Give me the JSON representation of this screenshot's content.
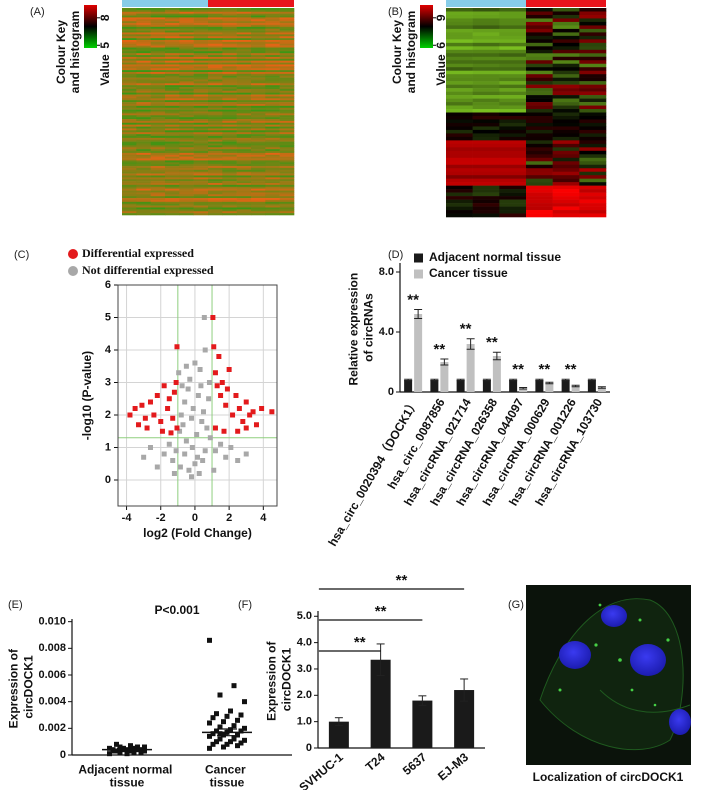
{
  "chart_data": [
    {
      "type": "heatmap",
      "panel_label": "(A)",
      "key_title": [
        "Colour Key",
        "and histogram"
      ],
      "key_label": "Value",
      "key_ticks": [
        5,
        8
      ],
      "key_lim": [
        4.7,
        9.4
      ],
      "group_colors": [
        "#87cde8",
        "#e8141c"
      ]
    },
    {
      "type": "heatmap",
      "panel_label": "(B)",
      "key_title": [
        "Colour Key",
        "and histogram"
      ],
      "key_label": "Value",
      "key_ticks": [
        6,
        9
      ],
      "key_lim": [
        5.7,
        10.4
      ],
      "group_colors": [
        "#87cde8",
        "#e8141c"
      ]
    },
    {
      "type": "scatter",
      "panel_label": "(C)",
      "xlabel": "log2 (Fold Change)",
      "ylabel": "-log10 (P-value)",
      "xlim": [
        -4.5,
        4.8
      ],
      "ylim": [
        -0.8,
        6
      ],
      "xticks": [
        -4,
        -2,
        0,
        2,
        4
      ],
      "yticks": [
        0,
        1,
        2,
        3,
        4,
        5,
        6
      ],
      "grid": true,
      "threshold_lines": {
        "x": [
          -1,
          1
        ],
        "y": [
          1.3
        ],
        "color": "#8fcf7f"
      },
      "series": [
        {
          "name": "Differential expressed",
          "color": "#e31a1c",
          "x": [
            -3.8,
            -3.5,
            -3.1,
            -2.9,
            -2.6,
            -2.4,
            -2.2,
            -2.0,
            -1.8,
            -1.6,
            -1.5,
            -1.3,
            -1.2,
            -1.1,
            -1.05,
            -2.8,
            -3.3,
            -1.9,
            -1.4,
            -1.05,
            1.05,
            1.1,
            1.2,
            1.3,
            1.5,
            1.6,
            1.8,
            2.0,
            2.2,
            2.4,
            2.6,
            2.8,
            3.0,
            3.2,
            3.4,
            3.6,
            3.9,
            4.5,
            1.2,
            1.7,
            2.5,
            1.4,
            1.9,
            3.0
          ],
          "y": [
            2.0,
            2.2,
            2.3,
            1.9,
            2.4,
            2.0,
            2.6,
            1.8,
            2.9,
            2.2,
            2.5,
            1.9,
            2.7,
            3.0,
            1.6,
            1.6,
            1.7,
            1.5,
            1.45,
            4.1,
            5.0,
            4.1,
            3.3,
            2.9,
            2.6,
            3.0,
            2.3,
            3.4,
            2.0,
            2.6,
            2.2,
            1.8,
            2.4,
            2.0,
            2.1,
            1.7,
            2.2,
            2.1,
            1.6,
            1.5,
            1.5,
            3.8,
            2.8,
            1.6
          ]
        },
        {
          "name": "Not differential expressed",
          "color": "#a8a8a8",
          "x": [
            -2.2,
            -1.8,
            -1.5,
            -1.3,
            -1.1,
            -0.9,
            -0.8,
            -0.7,
            -0.6,
            -0.5,
            -0.4,
            -0.3,
            -0.2,
            -0.1,
            0,
            0.1,
            0.2,
            0.3,
            0.4,
            0.5,
            0.6,
            0.7,
            0.8,
            0.9,
            -0.95,
            0.55,
            -0.35,
            0.25,
            1.2,
            1.5,
            1.8,
            2.1,
            2.5,
            3.0,
            -2.6,
            -3.0,
            -0.6,
            0.6,
            -0.2,
            0,
            -0.5,
            0.85,
            -0.75,
            0.35,
            1.1,
            -1.2,
            0.45,
            -0.15,
            0.15,
            -0.85
          ],
          "y": [
            0.4,
            0.8,
            1.1,
            0.6,
            0.9,
            1.5,
            2.0,
            1.7,
            2.4,
            1.2,
            2.8,
            3.1,
            1.9,
            2.2,
            0.5,
            1.4,
            2.6,
            3.4,
            1.8,
            2.1,
            4.0,
            1.6,
            2.5,
            1.3,
            3.3,
            5.0,
            0.3,
            0.2,
            0.9,
            1.1,
            0.7,
            1.0,
            0.6,
            0.8,
            1.0,
            0.7,
            0.8,
            0.9,
            0.1,
            3.6,
            3.5,
            3.0,
            2.9,
            2.9,
            0.3,
            0.2,
            0.6,
            1.0,
            0.7,
            0.4
          ]
        }
      ]
    },
    {
      "type": "bar",
      "panel_label": "(D)",
      "ylabel": "Relative expression of circRNAs",
      "categories": [
        "hsa_circ_0020394（DOCK1）",
        "hsa_circ_0087856",
        "hsa_circRNA_021714",
        "hsa_circRNA_026358",
        "hsa_circRNA_044097",
        "hsa_circRNA_000629",
        "hsa_circRNA_001226",
        "hsa_circRNA_103730"
      ],
      "series": [
        {
          "name": "Adjacent normal tissue",
          "color": "#1a1a1a",
          "values": [
            0.8,
            0.8,
            0.8,
            0.8,
            0.8,
            0.8,
            0.8,
            0.8
          ],
          "errors": [
            0.05,
            0.05,
            0.05,
            0.05,
            0.05,
            0.05,
            0.05,
            0.05
          ]
        },
        {
          "name": "Cancer tissue",
          "color": "#c0c0c0",
          "values": [
            5.2,
            2.0,
            3.2,
            2.4,
            0.25,
            0.6,
            0.4,
            0.3
          ],
          "errors": [
            0.3,
            0.2,
            0.35,
            0.25,
            0.05,
            0.05,
            0.05,
            0.05
          ]
        }
      ],
      "annotations": [
        "**",
        "**",
        "**",
        "**",
        "**",
        "**",
        "**",
        null
      ],
      "ylim": [
        0,
        8.6
      ],
      "yticks": [
        0,
        {
          "value": 4,
          "label": "4.0"
        },
        {
          "value": 8,
          "label": "8.0"
        }
      ]
    },
    {
      "type": "strip",
      "panel_label": "(E)",
      "title": "P<0.001",
      "ylabel": "Expression of circDOCK1",
      "categories": [
        "Adjacent normal tissue",
        "Cancer tissue"
      ],
      "values": [
        [
          0.0001,
          0.0002,
          0.0002,
          0.0003,
          0.0003,
          0.0003,
          0.0004,
          0.0004,
          0.0004,
          0.0004,
          0.0005,
          0.0005,
          0.0005,
          0.0006,
          0.0006,
          0.0007,
          0.0008,
          0.0002,
          0.0001,
          0.0003,
          0.0006,
          0.0004
        ],
        [
          0.0086,
          0.0052,
          0.0045,
          0.004,
          0.0033,
          0.0031,
          0.003,
          0.0029,
          0.0028,
          0.0026,
          0.0025,
          0.0024,
          0.0022,
          0.0021,
          0.002,
          0.0019,
          0.0018,
          0.0018,
          0.0017,
          0.0016,
          0.0015,
          0.0015,
          0.0014,
          0.0013,
          0.0012,
          0.0011,
          0.001,
          0.001,
          0.0009,
          0.0008,
          0.0008,
          0.0007,
          0.0006,
          0.0005,
          0.0012,
          0.0016
        ]
      ],
      "means": [
        0.0004,
        0.0017
      ],
      "errors": [
        0.0001,
        0.00025
      ],
      "color": "#111111",
      "ylim": [
        0,
        0.0102
      ],
      "yticks": [
        0,
        0.002,
        0.004,
        0.006,
        0.008,
        {
          "value": 0.01,
          "label": "0.010"
        }
      ]
    },
    {
      "type": "bar",
      "panel_label": "(F)",
      "ylabel": "Expression of circDOCK1",
      "categories": [
        "SVHUC-1",
        "T24",
        "5637",
        "EJ-M3"
      ],
      "values": [
        1.0,
        3.35,
        1.8,
        2.2
      ],
      "errors": [
        0.15,
        0.6,
        0.18,
        0.42
      ],
      "annotations": [
        "**",
        "**",
        "**"
      ],
      "color": "#1a1a1a",
      "ylim": [
        0,
        5.2
      ],
      "yticks": [
        0,
        {
          "value": 1,
          "label": "1.0"
        },
        {
          "value": 2,
          "label": "2.0"
        },
        {
          "value": 3,
          "label": "3.0"
        },
        {
          "value": 4,
          "label": "4.0"
        },
        {
          "value": 5,
          "label": "5.0"
        }
      ]
    },
    {
      "type": "image",
      "panel_label": "(G)",
      "caption": "Localization of circDOCK1"
    }
  ]
}
